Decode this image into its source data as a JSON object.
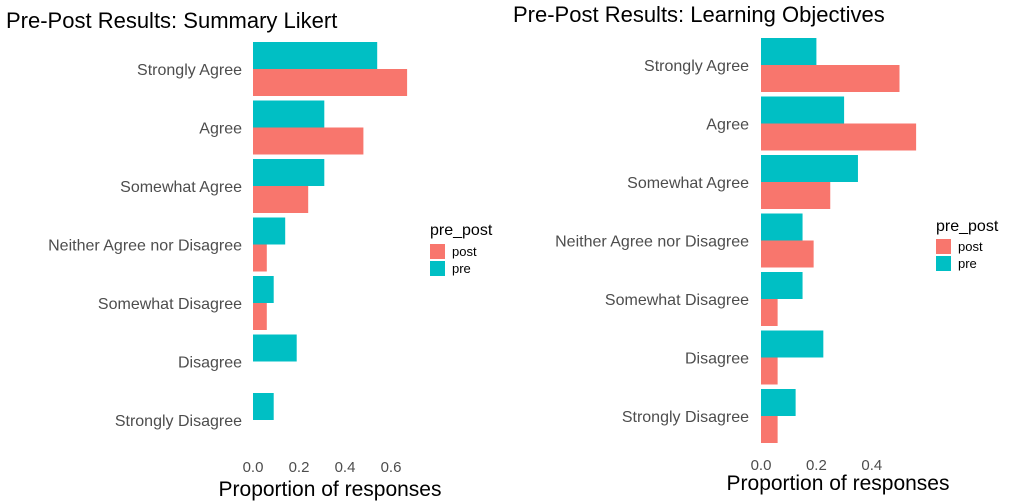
{
  "chart_data": [
    {
      "type": "bar",
      "orientation": "horizontal",
      "title": "Pre-Post Results: Summary Likert",
      "xlabel": "Proportion of responses",
      "ylabel": "",
      "xlim": [
        0,
        0.7
      ],
      "xticks": [
        "0.0",
        "0.2",
        "0.4",
        "0.6"
      ],
      "xtick_values": [
        0,
        0.2,
        0.4,
        0.6
      ],
      "categories": [
        "Strongly Agree",
        "Agree",
        "Somewhat Agree",
        "Neither Agree nor Disagree",
        "Somewhat Disagree",
        "Disagree",
        "Strongly Disagree"
      ],
      "legend": {
        "title": "pre_post",
        "position": "right"
      },
      "series": [
        {
          "name": "post",
          "color": "#F8766D",
          "values": [
            0.67,
            0.48,
            0.24,
            0.06,
            0.06,
            0.0,
            0.0
          ]
        },
        {
          "name": "pre",
          "color": "#00BFC4",
          "values": [
            0.54,
            0.31,
            0.31,
            0.14,
            0.09,
            0.19,
            0.09
          ]
        }
      ],
      "grid": false
    },
    {
      "type": "bar",
      "orientation": "horizontal",
      "title": "Pre-Post Results: Learning Objectives",
      "xlabel": "Proportion of responses",
      "ylabel": "",
      "xlim": [
        0,
        0.6
      ],
      "xticks": [
        "0.0",
        "0.2",
        "0.4"
      ],
      "xtick_values": [
        0,
        0.2,
        0.4
      ],
      "categories": [
        "Strongly Agree",
        "Agree",
        "Somewhat Agree",
        "Neither Agree nor Disagree",
        "Somewhat Disagree",
        "Disagree",
        "Strongly Disagree"
      ],
      "legend": {
        "title": "pre_post",
        "position": "right"
      },
      "series": [
        {
          "name": "post",
          "color": "#F8766D",
          "values": [
            0.5,
            0.56,
            0.25,
            0.19,
            0.06,
            0.06,
            0.06
          ]
        },
        {
          "name": "pre",
          "color": "#00BFC4",
          "values": [
            0.2,
            0.3,
            0.35,
            0.15,
            0.15,
            0.225,
            0.125
          ]
        }
      ],
      "grid": false
    }
  ]
}
